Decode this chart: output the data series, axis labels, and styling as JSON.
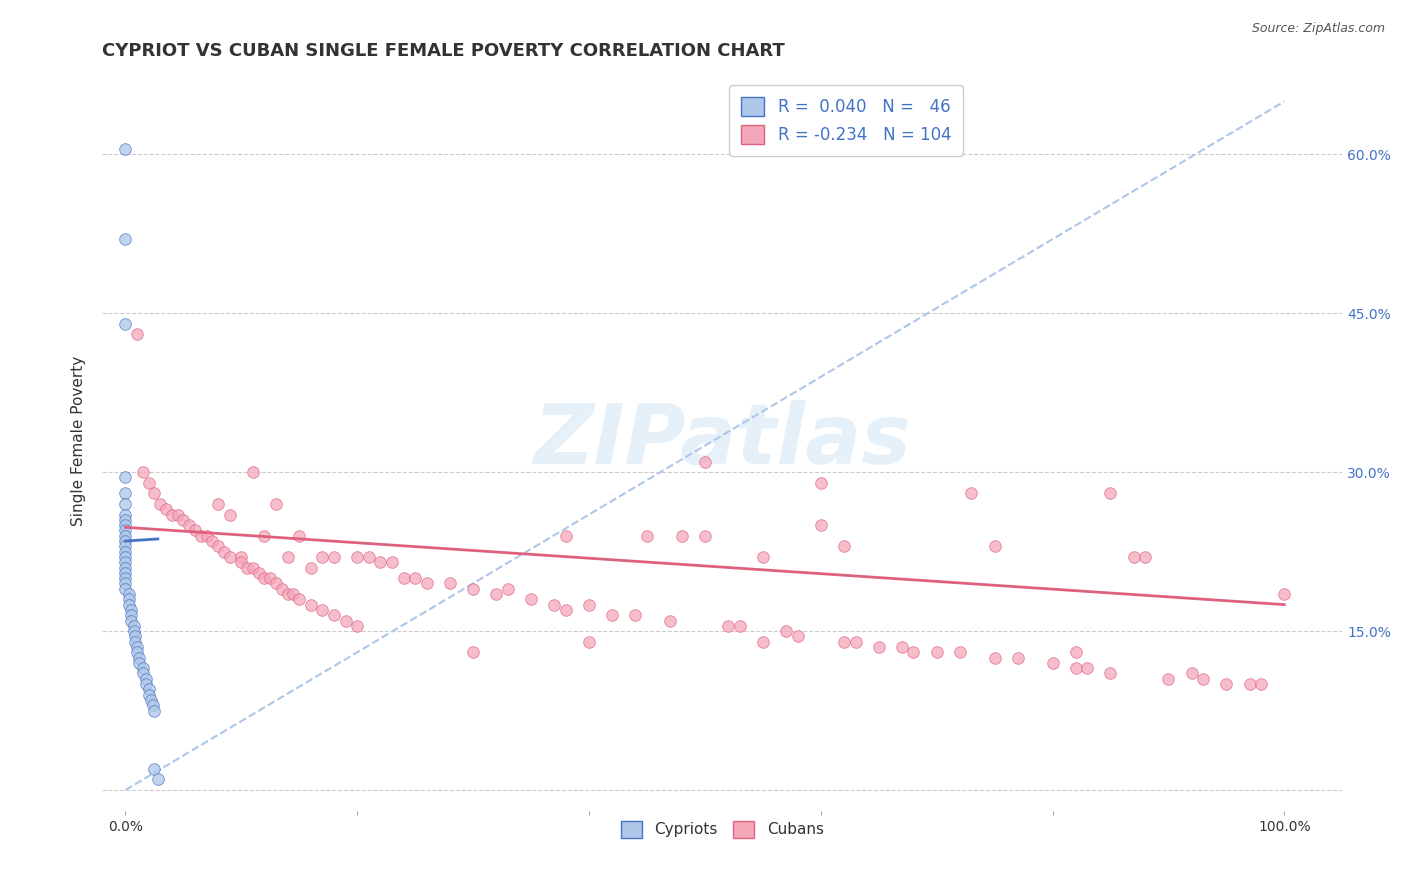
{
  "title": "CYPRIOT VS CUBAN SINGLE FEMALE POVERTY CORRELATION CHART",
  "source": "Source: ZipAtlas.com",
  "ylabel": "Single Female Poverty",
  "xlim": [
    -0.02,
    1.05
  ],
  "ylim": [
    -0.02,
    0.68
  ],
  "x_ticks": [
    0.0,
    0.2,
    0.4,
    0.6,
    0.8,
    1.0
  ],
  "x_tick_labels": [
    "0.0%",
    "",
    "",
    "",
    "",
    "100.0%"
  ],
  "y_ticks": [
    0.0,
    0.15,
    0.3,
    0.45,
    0.6
  ],
  "y_tick_labels_right": [
    "",
    "15.0%",
    "30.0%",
    "45.0%",
    "60.0%"
  ],
  "legend_r_n": [
    {
      "R": "0.040",
      "N": "46",
      "patch_color": "#aec6e8",
      "patch_edge": "#4472c4"
    },
    {
      "R": "-0.234",
      "N": "104",
      "patch_color": "#f4a7b9",
      "patch_edge": "#e06080"
    }
  ],
  "cypriot_x": [
    0.0,
    0.0,
    0.0,
    0.0,
    0.0,
    0.0,
    0.0,
    0.0,
    0.0,
    0.0,
    0.0,
    0.0,
    0.0,
    0.0,
    0.0,
    0.0,
    0.0,
    0.0,
    0.0,
    0.0,
    0.0,
    0.003,
    0.003,
    0.003,
    0.005,
    0.005,
    0.005,
    0.007,
    0.007,
    0.008,
    0.008,
    0.01,
    0.01,
    0.012,
    0.012,
    0.015,
    0.015,
    0.018,
    0.018,
    0.02,
    0.02,
    0.022,
    0.024,
    0.025,
    0.025,
    0.028
  ],
  "cypriot_y": [
    0.605,
    0.52,
    0.44,
    0.295,
    0.28,
    0.27,
    0.26,
    0.255,
    0.25,
    0.245,
    0.24,
    0.235,
    0.23,
    0.225,
    0.22,
    0.215,
    0.21,
    0.205,
    0.2,
    0.195,
    0.19,
    0.185,
    0.18,
    0.175,
    0.17,
    0.165,
    0.16,
    0.155,
    0.15,
    0.145,
    0.14,
    0.135,
    0.13,
    0.125,
    0.12,
    0.115,
    0.11,
    0.105,
    0.1,
    0.095,
    0.09,
    0.085,
    0.08,
    0.075,
    0.02,
    0.01
  ],
  "cypriot_color": "#aec6e8",
  "cypriot_edge": "#4472c4",
  "cuban_x": [
    0.01,
    0.015,
    0.02,
    0.025,
    0.03,
    0.035,
    0.04,
    0.045,
    0.05,
    0.055,
    0.06,
    0.065,
    0.07,
    0.075,
    0.08,
    0.08,
    0.085,
    0.09,
    0.09,
    0.1,
    0.1,
    0.105,
    0.11,
    0.11,
    0.115,
    0.12,
    0.12,
    0.125,
    0.13,
    0.13,
    0.135,
    0.14,
    0.14,
    0.145,
    0.15,
    0.15,
    0.16,
    0.16,
    0.17,
    0.17,
    0.18,
    0.18,
    0.19,
    0.2,
    0.2,
    0.21,
    0.22,
    0.23,
    0.24,
    0.25,
    0.26,
    0.28,
    0.3,
    0.3,
    0.32,
    0.33,
    0.35,
    0.37,
    0.38,
    0.4,
    0.42,
    0.44,
    0.45,
    0.47,
    0.5,
    0.52,
    0.53,
    0.55,
    0.57,
    0.58,
    0.6,
    0.62,
    0.63,
    0.65,
    0.67,
    0.7,
    0.72,
    0.75,
    0.77,
    0.8,
    0.82,
    0.83,
    0.85,
    0.87,
    0.9,
    0.92,
    0.93,
    0.95,
    0.97,
    0.98,
    1.0,
    0.48,
    0.6,
    0.73,
    0.85,
    0.38,
    0.5,
    0.62,
    0.75,
    0.88,
    0.4,
    0.55,
    0.68,
    0.82
  ],
  "cuban_y": [
    0.43,
    0.3,
    0.29,
    0.28,
    0.27,
    0.265,
    0.26,
    0.26,
    0.255,
    0.25,
    0.245,
    0.24,
    0.24,
    0.235,
    0.23,
    0.27,
    0.225,
    0.22,
    0.26,
    0.22,
    0.215,
    0.21,
    0.21,
    0.3,
    0.205,
    0.2,
    0.24,
    0.2,
    0.195,
    0.27,
    0.19,
    0.185,
    0.22,
    0.185,
    0.18,
    0.24,
    0.175,
    0.21,
    0.17,
    0.22,
    0.165,
    0.22,
    0.16,
    0.22,
    0.155,
    0.22,
    0.215,
    0.215,
    0.2,
    0.2,
    0.195,
    0.195,
    0.19,
    0.13,
    0.185,
    0.19,
    0.18,
    0.175,
    0.17,
    0.175,
    0.165,
    0.165,
    0.24,
    0.16,
    0.31,
    0.155,
    0.155,
    0.22,
    0.15,
    0.145,
    0.25,
    0.14,
    0.14,
    0.135,
    0.135,
    0.13,
    0.13,
    0.125,
    0.125,
    0.12,
    0.115,
    0.115,
    0.11,
    0.22,
    0.105,
    0.11,
    0.105,
    0.1,
    0.1,
    0.1,
    0.185,
    0.24,
    0.29,
    0.28,
    0.28,
    0.24,
    0.24,
    0.23,
    0.23,
    0.22,
    0.14,
    0.14,
    0.13,
    0.13
  ],
  "cuban_color": "#f4a7b9",
  "cuban_edge": "#e06080",
  "cypriot_trend_color": "#4472c4",
  "cuban_trend_color": "#e06080",
  "cuban_trend_y0": 0.248,
  "cuban_trend_y1": 0.175,
  "cypriot_trend_y0": 0.235,
  "cypriot_trend_y1": 0.237,
  "cypriot_trend_x0": 0.0,
  "cypriot_trend_x1": 0.028,
  "diagonal_color": "#aec6e8",
  "grid_color": "#cccccc",
  "background_color": "#ffffff",
  "watermark_text": "ZIPatlas",
  "title_fontsize": 13,
  "tick_fontsize": 10,
  "axis_label_fontsize": 11
}
